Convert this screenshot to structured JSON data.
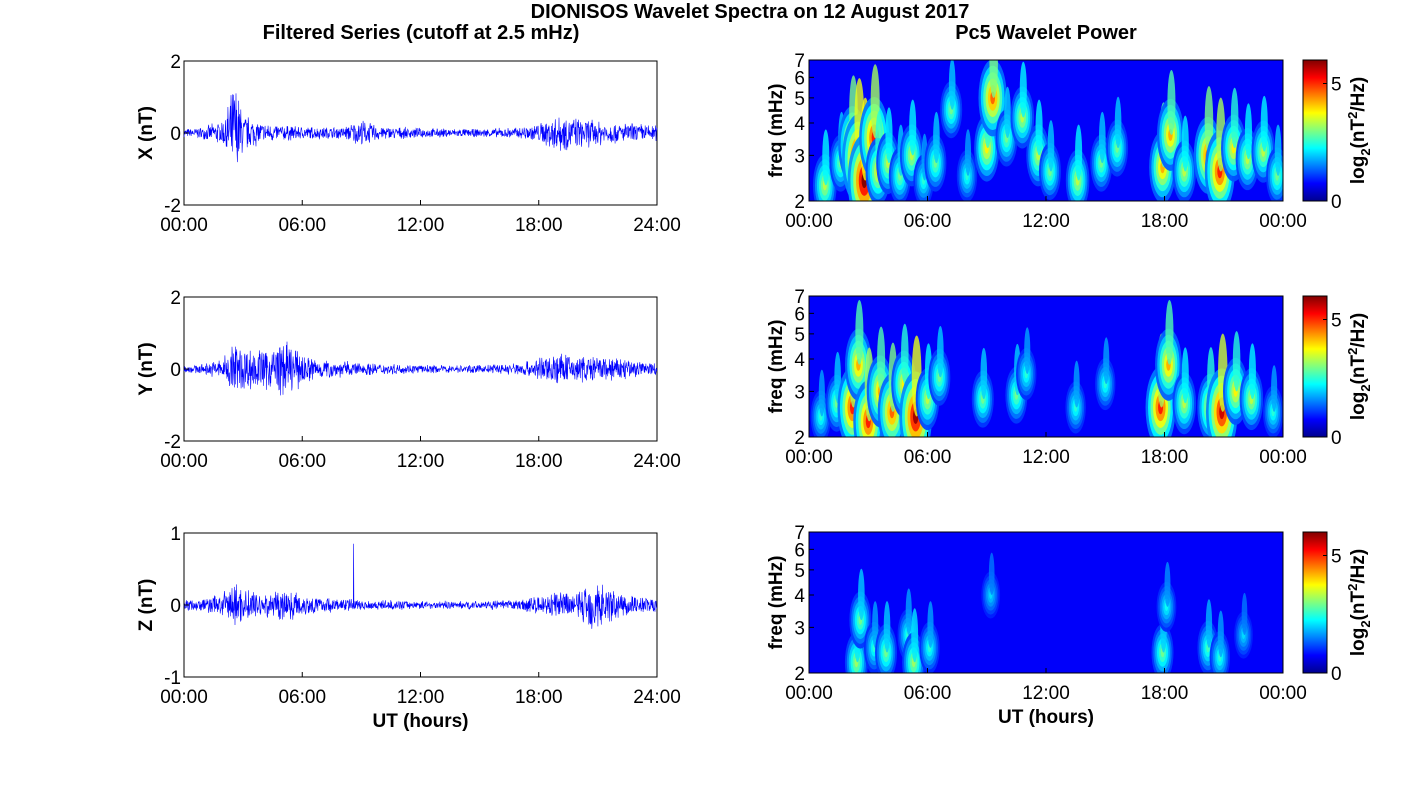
{
  "figure": {
    "title": "DIONISOS Wavelet Spectra on 12 August 2017",
    "left_column_title": "Filtered Series (cutoff at 2.5 mHz)",
    "right_column_title": "Pc5 Wavelet Power"
  },
  "chart_data": [
    {
      "type": "line",
      "title": "",
      "xlabel": "",
      "ylabel": "X (nT)",
      "xlim": [
        0,
        24
      ],
      "ylim": [
        -2,
        2
      ],
      "x_tick_labels": [
        "00:00",
        "06:00",
        "12:00",
        "18:00",
        "24:00"
      ],
      "y_tick_labels": [
        "-2",
        "0",
        "2"
      ],
      "series_color": "#0000ff",
      "grid": false,
      "envelope": {
        "x_hours": [
          0,
          1,
          2,
          2.6,
          3,
          4,
          6,
          8,
          9,
          10,
          12,
          15,
          17,
          18,
          19,
          20,
          21,
          22,
          23,
          24
        ],
        "amplitude_nT": [
          0.12,
          0.18,
          0.4,
          1.6,
          0.6,
          0.3,
          0.2,
          0.18,
          0.4,
          0.2,
          0.15,
          0.12,
          0.18,
          0.3,
          0.6,
          0.45,
          0.4,
          0.3,
          0.3,
          0.25
        ]
      }
    },
    {
      "type": "line",
      "title": "",
      "xlabel": "",
      "ylabel": "Y (nT)",
      "xlim": [
        0,
        24
      ],
      "ylim": [
        -2,
        2
      ],
      "x_tick_labels": [
        "00:00",
        "06:00",
        "12:00",
        "18:00",
        "24:00"
      ],
      "y_tick_labels": [
        "-2",
        "0",
        "2"
      ],
      "series_color": "#0000ff",
      "grid": false,
      "envelope": {
        "x_hours": [
          0,
          1,
          2,
          2.5,
          3,
          4,
          5,
          6,
          7,
          9,
          12,
          15,
          17,
          18,
          19,
          20,
          21,
          22,
          23,
          24
        ],
        "amplitude_nT": [
          0.12,
          0.15,
          0.35,
          0.9,
          0.7,
          0.6,
          0.9,
          0.5,
          0.3,
          0.2,
          0.12,
          0.12,
          0.2,
          0.35,
          0.5,
          0.4,
          0.4,
          0.35,
          0.3,
          0.2
        ]
      }
    },
    {
      "type": "line",
      "title": "",
      "xlabel": "UT (hours)",
      "ylabel": "Z (nT)",
      "xlim": [
        0,
        24
      ],
      "ylim": [
        -1,
        1
      ],
      "x_tick_labels": [
        "00:00",
        "06:00",
        "12:00",
        "18:00",
        "24:00"
      ],
      "y_tick_labels": [
        "-1",
        "0",
        "1"
      ],
      "series_color": "#0000ff",
      "grid": false,
      "spike": {
        "x_hours": 8.6,
        "value_nT": 0.85
      },
      "envelope": {
        "x_hours": [
          0,
          1,
          2,
          2.5,
          3,
          4,
          5,
          6,
          7,
          9,
          12,
          15,
          17,
          18,
          19,
          20,
          20.8,
          21.5,
          22,
          23,
          24
        ],
        "amplitude_nT": [
          0.08,
          0.1,
          0.2,
          0.35,
          0.25,
          0.2,
          0.25,
          0.18,
          0.12,
          0.08,
          0.06,
          0.06,
          0.08,
          0.15,
          0.2,
          0.2,
          0.45,
          0.3,
          0.2,
          0.15,
          0.1
        ]
      }
    },
    {
      "type": "heatmap",
      "title": "",
      "xlabel": "",
      "ylabel": "freq (mHz)",
      "xlim": [
        0,
        24
      ],
      "ylim": [
        2,
        7
      ],
      "y_scale": "log",
      "x_tick_labels": [
        "00:00",
        "06:00",
        "12:00",
        "18:00",
        "00:00"
      ],
      "y_tick_labels": [
        "2",
        "3",
        "4",
        "5",
        "6",
        "7"
      ],
      "colorbar": {
        "label": "log2(nT²/Hz)",
        "label_main": "log",
        "label_sub": "2",
        "label_open": "(nT",
        "label_sup": "2",
        "label_close": "/Hz)",
        "range": [
          0,
          6
        ],
        "tick_labels": [
          "0",
          "5"
        ],
        "colormap": "jet"
      },
      "blobs_hours_mHz_power": [
        [
          0.8,
          2.3,
          3.0
        ],
        [
          1.6,
          2.8,
          2.5
        ],
        [
          2.2,
          3.3,
          4.5
        ],
        [
          2.5,
          2.9,
          5.8
        ],
        [
          2.8,
          2.4,
          6.0
        ],
        [
          3.3,
          3.5,
          5.0
        ],
        [
          3.5,
          2.6,
          3.5
        ],
        [
          4.0,
          2.8,
          3.0
        ],
        [
          4.6,
          2.5,
          2.5
        ],
        [
          5.2,
          3.0,
          3.0
        ],
        [
          5.8,
          2.4,
          2.0
        ],
        [
          6.4,
          2.8,
          2.5
        ],
        [
          7.2,
          4.5,
          2.5
        ],
        [
          8.0,
          2.5,
          2.0
        ],
        [
          9.0,
          3.2,
          3.5
        ],
        [
          9.3,
          5.0,
          4.5
        ],
        [
          10.0,
          3.5,
          2.5
        ],
        [
          10.8,
          4.2,
          3.0
        ],
        [
          11.6,
          3.0,
          3.0
        ],
        [
          12.2,
          2.6,
          2.5
        ],
        [
          13.6,
          2.4,
          3.0
        ],
        [
          14.8,
          2.8,
          2.5
        ],
        [
          15.6,
          3.2,
          2.5
        ],
        [
          17.9,
          2.7,
          4.0
        ],
        [
          18.3,
          3.6,
          4.0
        ],
        [
          19.0,
          2.6,
          3.0
        ],
        [
          20.2,
          3.0,
          4.5
        ],
        [
          20.8,
          2.6,
          5.0
        ],
        [
          21.5,
          3.2,
          3.5
        ],
        [
          22.2,
          2.9,
          3.0
        ],
        [
          23.0,
          3.1,
          3.0
        ],
        [
          23.7,
          2.5,
          2.5
        ]
      ]
    },
    {
      "type": "heatmap",
      "title": "",
      "xlabel": "",
      "ylabel": "freq (mHz)",
      "xlim": [
        0,
        24
      ],
      "ylim": [
        2,
        7
      ],
      "y_scale": "log",
      "x_tick_labels": [
        "00:00",
        "06:00",
        "12:00",
        "18:00",
        "00:00"
      ],
      "y_tick_labels": [
        "2",
        "3",
        "4",
        "5",
        "6",
        "7"
      ],
      "colorbar": {
        "label": "log2(nT²/Hz)",
        "label_main": "log",
        "label_sub": "2",
        "label_open": "(nT",
        "label_sup": "2",
        "label_close": "/Hz)",
        "range": [
          0,
          6
        ],
        "tick_labels": [
          "0",
          "5"
        ],
        "colormap": "jet"
      },
      "blobs_hours_mHz_power": [
        [
          0.6,
          2.4,
          2.0
        ],
        [
          1.4,
          2.7,
          2.5
        ],
        [
          2.2,
          2.6,
          5.0
        ],
        [
          2.5,
          3.8,
          4.0
        ],
        [
          3.0,
          2.3,
          5.0
        ],
        [
          3.6,
          3.0,
          4.0
        ],
        [
          4.2,
          2.5,
          4.5
        ],
        [
          4.8,
          3.2,
          3.5
        ],
        [
          5.4,
          2.4,
          5.8
        ],
        [
          6.0,
          2.8,
          3.0
        ],
        [
          6.6,
          3.4,
          2.5
        ],
        [
          8.8,
          2.8,
          2.5
        ],
        [
          10.5,
          2.9,
          2.5
        ],
        [
          11.0,
          3.5,
          2.0
        ],
        [
          13.5,
          2.6,
          2.0
        ],
        [
          15.0,
          3.2,
          2.0
        ],
        [
          17.8,
          2.6,
          5.0
        ],
        [
          18.2,
          3.8,
          4.0
        ],
        [
          19.0,
          2.7,
          3.0
        ],
        [
          20.3,
          2.6,
          3.5
        ],
        [
          20.9,
          2.5,
          5.5
        ],
        [
          21.6,
          3.0,
          3.5
        ],
        [
          22.4,
          2.8,
          3.0
        ],
        [
          23.5,
          2.5,
          2.0
        ]
      ]
    },
    {
      "type": "heatmap",
      "title": "",
      "xlabel": "UT (hours)",
      "ylabel": "freq (mHz)",
      "xlim": [
        0,
        24
      ],
      "ylim": [
        2,
        7
      ],
      "y_scale": "log",
      "x_tick_labels": [
        "00:00",
        "06:00",
        "12:00",
        "18:00",
        "00:00"
      ],
      "y_tick_labels": [
        "2",
        "3",
        "4",
        "5",
        "6",
        "7"
      ],
      "colorbar": {
        "label": "log2(nT²/Hz)",
        "label_main": "log",
        "label_sub": "2",
        "label_open": "(nT",
        "label_sup": "2",
        "label_close": "/Hz)",
        "range": [
          0,
          6
        ],
        "tick_labels": [
          "0",
          "5"
        ],
        "colormap": "jet"
      },
      "blobs_hours_mHz_power": [
        [
          2.4,
          2.2,
          2.8
        ],
        [
          2.6,
          3.2,
          2.5
        ],
        [
          3.3,
          2.5,
          2.0
        ],
        [
          3.9,
          2.4,
          2.5
        ],
        [
          5.0,
          2.8,
          2.0
        ],
        [
          5.3,
          2.2,
          2.8
        ],
        [
          6.1,
          2.5,
          2.0
        ],
        [
          9.2,
          4.0,
          1.5
        ],
        [
          17.9,
          2.4,
          2.5
        ],
        [
          18.1,
          3.6,
          1.8
        ],
        [
          20.2,
          2.5,
          2.2
        ],
        [
          20.8,
          2.3,
          2.0
        ],
        [
          22.0,
          2.8,
          1.5
        ]
      ]
    }
  ]
}
